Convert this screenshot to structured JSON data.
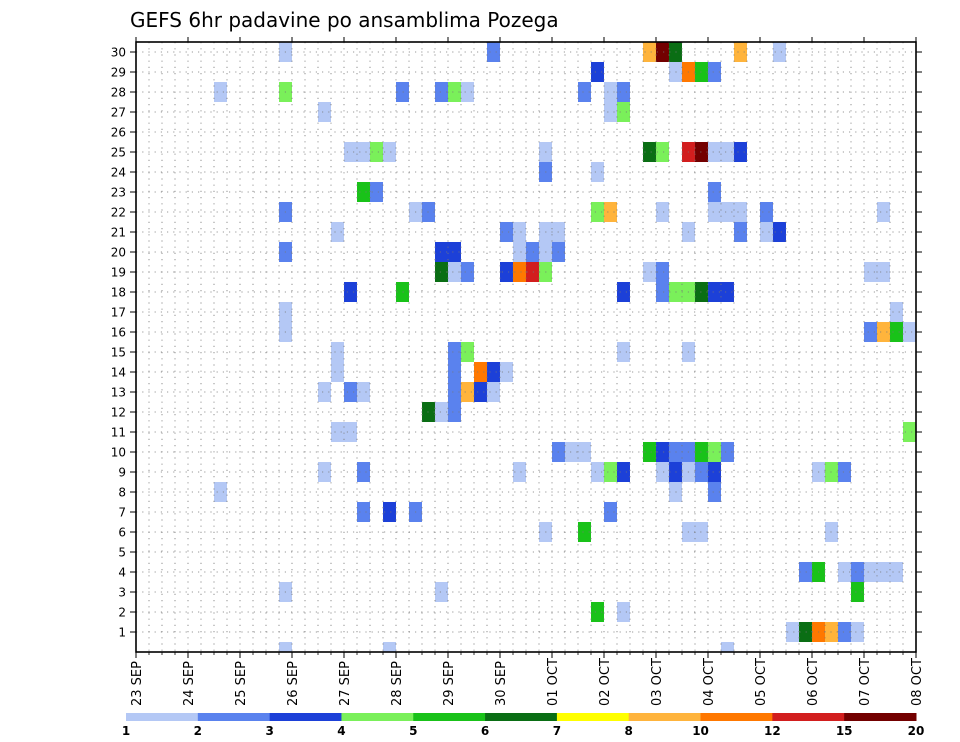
{
  "chart_data": {
    "type": "heatmap",
    "title": "GEFS 6hr padavine po ansamblima Pozega",
    "x_tick_labels": [
      "23 SEP",
      "24 SEP",
      "25 SEP",
      "26 SEP",
      "27 SEP",
      "28 SEP",
      "29 SEP",
      "30 SEP",
      "01 OCT",
      "02 OCT",
      "03 OCT",
      "04 OCT",
      "05 OCT",
      "06 OCT",
      "07 OCT",
      "08 OCT"
    ],
    "x_range": [
      "23 SEP",
      "08 OCT"
    ],
    "time_step_hours": 6,
    "y_tick_labels": [
      "1",
      "2",
      "3",
      "4",
      "5",
      "6",
      "7",
      "8",
      "9",
      "10",
      "11",
      "12",
      "13",
      "14",
      "15",
      "16",
      "17",
      "18",
      "19",
      "20",
      "21",
      "22",
      "23",
      "24",
      "25",
      "26",
      "27",
      "28",
      "29",
      "30"
    ],
    "y_range": [
      0,
      30
    ],
    "grid": "dotted",
    "colorbar": {
      "labels": [
        "1",
        "2",
        "3",
        "4",
        "5",
        "6",
        "7",
        "8",
        "10",
        "12",
        "15",
        "20"
      ],
      "colors": [
        "#b4c8f5",
        "#5a82ee",
        "#1c40d8",
        "#7af05a",
        "#19c219",
        "#0a6e14",
        "#ffff00",
        "#ffb43c",
        "#ff7800",
        "#d21e1e",
        "#730000"
      ]
    },
    "cells": [
      [
        1,
        12.5,
        1
      ],
      [
        1,
        12.75,
        6
      ],
      [
        1,
        13.0,
        9
      ],
      [
        1,
        13.25,
        8
      ],
      [
        1,
        13.5,
        2
      ],
      [
        1,
        13.75,
        1
      ],
      [
        2,
        8.75,
        5
      ],
      [
        2,
        9.25,
        1
      ],
      [
        3,
        2.75,
        1
      ],
      [
        3,
        5.75,
        1
      ],
      [
        3,
        13.75,
        5
      ],
      [
        4,
        12.75,
        2
      ],
      [
        4,
        13.0,
        5
      ],
      [
        4,
        13.5,
        1
      ],
      [
        4,
        13.75,
        2
      ],
      [
        4,
        14.0,
        1
      ],
      [
        4,
        14.25,
        1
      ],
      [
        4,
        14.5,
        1
      ],
      [
        6,
        7.75,
        1
      ],
      [
        6,
        8.5,
        5
      ],
      [
        6,
        10.5,
        1
      ],
      [
        6,
        10.75,
        1
      ],
      [
        6,
        13.25,
        1
      ],
      [
        7,
        4.25,
        2
      ],
      [
        7,
        4.75,
        3
      ],
      [
        7,
        5.25,
        2
      ],
      [
        7,
        9.0,
        2
      ],
      [
        8,
        1.5,
        1
      ],
      [
        8,
        10.25,
        1
      ],
      [
        8,
        11.0,
        2
      ],
      [
        9,
        3.5,
        1
      ],
      [
        9,
        4.25,
        2
      ],
      [
        9,
        7.25,
        1
      ],
      [
        9,
        8.75,
        1
      ],
      [
        9,
        9.0,
        4
      ],
      [
        9,
        9.25,
        3
      ],
      [
        9,
        10.0,
        1
      ],
      [
        9,
        10.25,
        3
      ],
      [
        9,
        10.5,
        1
      ],
      [
        9,
        10.75,
        2
      ],
      [
        9,
        11.0,
        3
      ],
      [
        9,
        13.0,
        1
      ],
      [
        9,
        13.25,
        4
      ],
      [
        9,
        13.5,
        2
      ],
      [
        10,
        8.0,
        2
      ],
      [
        10,
        8.25,
        1
      ],
      [
        10,
        8.5,
        1
      ],
      [
        10,
        9.75,
        5
      ],
      [
        10,
        10.0,
        3
      ],
      [
        10,
        10.25,
        2
      ],
      [
        10,
        10.5,
        2
      ],
      [
        10,
        10.75,
        5
      ],
      [
        10,
        11.0,
        4
      ],
      [
        10,
        11.25,
        2
      ],
      [
        11,
        3.75,
        1
      ],
      [
        11,
        4.0,
        1
      ],
      [
        11,
        14.75,
        4
      ],
      [
        12,
        5.5,
        6
      ],
      [
        12,
        5.75,
        1
      ],
      [
        12,
        6.0,
        2
      ],
      [
        13,
        3.5,
        1
      ],
      [
        13,
        4.0,
        2
      ],
      [
        13,
        4.25,
        1
      ],
      [
        13,
        6.0,
        2
      ],
      [
        13,
        6.25,
        8
      ],
      [
        13,
        6.5,
        3
      ],
      [
        13,
        6.75,
        1
      ],
      [
        14,
        3.75,
        1
      ],
      [
        14,
        6.0,
        2
      ],
      [
        14,
        6.5,
        9
      ],
      [
        14,
        6.75,
        3
      ],
      [
        14,
        7.0,
        1
      ],
      [
        15,
        3.75,
        1
      ],
      [
        15,
        6.0,
        2
      ],
      [
        15,
        6.25,
        4
      ],
      [
        15,
        9.25,
        1
      ],
      [
        15,
        10.5,
        1
      ],
      [
        16,
        2.75,
        1
      ],
      [
        16,
        14.0,
        2
      ],
      [
        16,
        14.25,
        8
      ],
      [
        16,
        14.5,
        5
      ],
      [
        16,
        14.75,
        1
      ],
      [
        17,
        2.75,
        1
      ],
      [
        17,
        14.5,
        1
      ],
      [
        18,
        4.0,
        3
      ],
      [
        18,
        5.0,
        5
      ],
      [
        18,
        9.25,
        3
      ],
      [
        18,
        10.0,
        2
      ],
      [
        18,
        10.25,
        4
      ],
      [
        18,
        10.5,
        4
      ],
      [
        18,
        10.75,
        6
      ],
      [
        18,
        11.0,
        3
      ],
      [
        18,
        11.25,
        3
      ],
      [
        19,
        5.75,
        6
      ],
      [
        19,
        6.0,
        1
      ],
      [
        19,
        6.25,
        2
      ],
      [
        19,
        7.0,
        3
      ],
      [
        19,
        7.25,
        9
      ],
      [
        19,
        7.5,
        10
      ],
      [
        19,
        7.75,
        4
      ],
      [
        19,
        9.75,
        1
      ],
      [
        19,
        10.0,
        2
      ],
      [
        19,
        14.0,
        1
      ],
      [
        19,
        14.25,
        1
      ],
      [
        20,
        2.75,
        2
      ],
      [
        20,
        5.75,
        3
      ],
      [
        20,
        6.0,
        3
      ],
      [
        20,
        7.25,
        1
      ],
      [
        20,
        7.5,
        2
      ],
      [
        20,
        7.75,
        1
      ],
      [
        20,
        8.0,
        2
      ],
      [
        21,
        3.75,
        1
      ],
      [
        21,
        7.0,
        2
      ],
      [
        21,
        7.25,
        1
      ],
      [
        21,
        7.75,
        1
      ],
      [
        21,
        8.0,
        1
      ],
      [
        21,
        10.5,
        1
      ],
      [
        21,
        11.5,
        2
      ],
      [
        21,
        12.0,
        1
      ],
      [
        21,
        12.25,
        3
      ],
      [
        22,
        2.75,
        2
      ],
      [
        22,
        5.25,
        1
      ],
      [
        22,
        5.5,
        2
      ],
      [
        22,
        8.75,
        4
      ],
      [
        22,
        9.0,
        8
      ],
      [
        22,
        10.0,
        1
      ],
      [
        22,
        11.0,
        1
      ],
      [
        22,
        11.25,
        1
      ],
      [
        22,
        11.5,
        1
      ],
      [
        22,
        12.0,
        2
      ],
      [
        22,
        14.25,
        1
      ],
      [
        23,
        4.25,
        5
      ],
      [
        23,
        4.5,
        2
      ],
      [
        23,
        11.0,
        2
      ],
      [
        24,
        7.75,
        2
      ],
      [
        24,
        8.75,
        1
      ],
      [
        25,
        4.0,
        1
      ],
      [
        25,
        4.25,
        1
      ],
      [
        25,
        4.5,
        4
      ],
      [
        25,
        4.75,
        1
      ],
      [
        25,
        7.75,
        1
      ],
      [
        25,
        9.75,
        6
      ],
      [
        25,
        10.0,
        4
      ],
      [
        25,
        10.5,
        10
      ],
      [
        25,
        10.75,
        11
      ],
      [
        25,
        11.0,
        1
      ],
      [
        25,
        11.25,
        1
      ],
      [
        25,
        11.5,
        3
      ],
      [
        27,
        3.5,
        1
      ],
      [
        27,
        9.0,
        1
      ],
      [
        27,
        9.25,
        4
      ],
      [
        28,
        1.5,
        1
      ],
      [
        28,
        2.75,
        4
      ],
      [
        28,
        5.0,
        2
      ],
      [
        28,
        5.75,
        2
      ],
      [
        28,
        6.0,
        4
      ],
      [
        28,
        6.25,
        1
      ],
      [
        28,
        8.5,
        2
      ],
      [
        28,
        9.0,
        1
      ],
      [
        28,
        9.25,
        2
      ],
      [
        29,
        8.75,
        3
      ],
      [
        29,
        10.25,
        1
      ],
      [
        29,
        10.5,
        9
      ],
      [
        29,
        10.75,
        5
      ],
      [
        29,
        11.0,
        2
      ],
      [
        30,
        2.75,
        1
      ],
      [
        30,
        6.75,
        2
      ],
      [
        30,
        9.75,
        8
      ],
      [
        30,
        10.0,
        11
      ],
      [
        30,
        10.25,
        6
      ],
      [
        30,
        11.5,
        8
      ],
      [
        30,
        12.25,
        1
      ],
      [
        0,
        2.75,
        1
      ],
      [
        0,
        4.75,
        1
      ],
      [
        0,
        11.25,
        1
      ]
    ]
  }
}
